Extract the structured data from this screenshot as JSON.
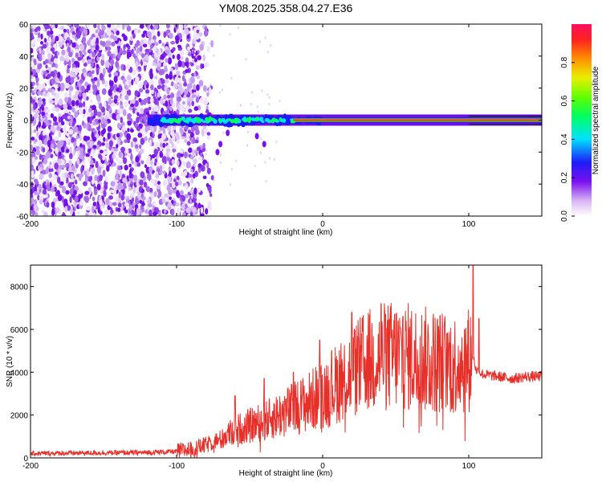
{
  "title": "YM08.2025.358.04.27.E36",
  "chart_data": [
    {
      "type": "heatmap",
      "title": "YM08.2025.358.04.27.E36",
      "xlabel": "Height of straight line (km)",
      "ylabel": "Frequency (Hz)",
      "xlim": [
        -200,
        150
      ],
      "ylim": [
        -60,
        60
      ],
      "xticks": [
        -200,
        -100,
        0,
        100
      ],
      "yticks": [
        -60,
        -40,
        -20,
        0,
        20,
        40,
        60
      ],
      "colorbar": {
        "label": "Normalized spectral amplitude",
        "range": [
          0,
          1
        ],
        "ticks": [
          0.0,
          0.2,
          0.4,
          0.6,
          0.8
        ]
      },
      "description_values": {
        "noise_region_x": [
          -200,
          -90
        ],
        "signal_band_start_x": -120,
        "signal_band_center_freq": 0,
        "saturated_band_start_x": -20
      }
    },
    {
      "type": "line",
      "xlabel": "Height of straight line (km)",
      "ylabel": "SNR (10 * v/v)",
      "xlim": [
        -200,
        150
      ],
      "ylim": [
        0,
        9000
      ],
      "xticks": [
        -200,
        -100,
        0,
        100
      ],
      "yticks": [
        0,
        2000,
        4000,
        6000,
        8000
      ],
      "series": [
        {
          "name": "SNR",
          "color": "#e8302a",
          "x": [
            -200,
            -180,
            -160,
            -140,
            -120,
            -100,
            -90,
            -80,
            -70,
            -60,
            -50,
            -40,
            -30,
            -20,
            -10,
            0,
            10,
            20,
            30,
            40,
            50,
            60,
            70,
            80,
            90,
            100,
            103,
            105,
            110,
            120,
            130,
            140,
            150
          ],
          "values": [
            200,
            220,
            230,
            240,
            250,
            300,
            400,
            600,
            900,
            1300,
            1500,
            1700,
            2000,
            2300,
            2600,
            3000,
            3500,
            4000,
            4500,
            4700,
            4800,
            4700,
            4600,
            4500,
            4400,
            4600,
            4800,
            4100,
            3900,
            3800,
            3700,
            3800,
            3800
          ],
          "spikes": [
            {
              "x": -60,
              "y": 2900
            },
            {
              "x": -40,
              "y": 3700
            },
            {
              "x": -20,
              "y": 4000
            },
            {
              "x": -2,
              "y": 5500
            },
            {
              "x": 20,
              "y": 6800
            },
            {
              "x": 40,
              "y": 7200
            },
            {
              "x": 55,
              "y": 6600
            },
            {
              "x": 85,
              "y": 5800
            },
            {
              "x": 103,
              "y": 9000
            },
            {
              "x": 107,
              "y": 6500
            }
          ]
        }
      ]
    }
  ]
}
